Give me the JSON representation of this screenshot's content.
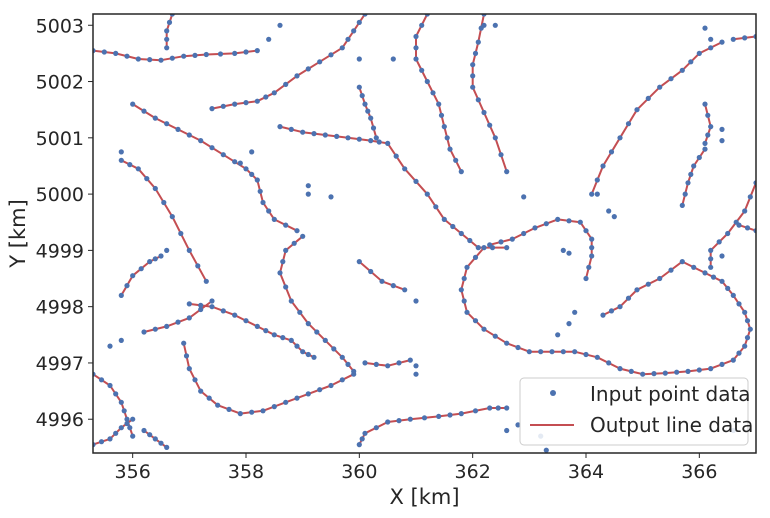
{
  "chart_data": {
    "type": "line",
    "title": "",
    "xlabel": "X [km]",
    "ylabel": "Y [km]",
    "xlim": [
      355.3,
      367.0
    ],
    "ylim": [
      4995.4,
      5003.2
    ],
    "xticks": [
      356,
      358,
      360,
      362,
      364,
      366
    ],
    "yticks": [
      4996,
      4997,
      4998,
      4999,
      5000,
      5001,
      5002,
      5003
    ],
    "grid": false,
    "legend": {
      "placement": "bottom-right",
      "entries": [
        "Input point data",
        "Output line data"
      ]
    },
    "colors": {
      "points": "#4c72b0",
      "lines": "#c44e52",
      "axes": "#262626"
    },
    "series": [
      {
        "name": "Output line data",
        "kind": "lines",
        "lines": [
          [
            [
              355.3,
              5002.55
            ],
            [
              355.7,
              5002.5
            ],
            [
              356.1,
              5002.4
            ],
            [
              356.5,
              5002.38
            ],
            [
              356.9,
              5002.45
            ],
            [
              357.3,
              5002.48
            ],
            [
              357.8,
              5002.5
            ],
            [
              358.2,
              5002.55
            ]
          ],
          [
            [
              356.7,
              5003.2
            ],
            [
              356.6,
              5002.9
            ],
            [
              356.6,
              5002.6
            ]
          ],
          [
            [
              357.4,
              5001.52
            ],
            [
              357.8,
              5001.6
            ],
            [
              358.2,
              5001.65
            ],
            [
              358.5,
              5001.8
            ],
            [
              358.9,
              5002.1
            ],
            [
              359.3,
              5002.35
            ],
            [
              359.7,
              5002.6
            ],
            [
              359.9,
              5002.9
            ],
            [
              360.1,
              5003.2
            ]
          ],
          [
            [
              356.0,
              5001.6
            ],
            [
              356.4,
              5001.35
            ],
            [
              356.8,
              5001.15
            ],
            [
              357.2,
              5000.95
            ],
            [
              357.6,
              5000.7
            ],
            [
              358.0,
              5000.45
            ],
            [
              358.2,
              5000.25
            ],
            [
              358.3,
              4999.85
            ],
            [
              358.5,
              4999.55
            ],
            [
              358.9,
              4999.35
            ]
          ],
          [
            [
              355.8,
              5000.6
            ],
            [
              356.1,
              5000.45
            ],
            [
              356.4,
              5000.1
            ],
            [
              356.7,
              4999.6
            ],
            [
              357.0,
              4999.0
            ],
            [
              357.3,
              4998.45
            ]
          ],
          [
            [
              355.8,
              4998.2
            ],
            [
              356.0,
              4998.55
            ],
            [
              356.3,
              4998.8
            ],
            [
              356.5,
              4998.9
            ]
          ],
          [
            [
              358.6,
              5001.2
            ],
            [
              359.0,
              5001.1
            ],
            [
              359.4,
              5001.05
            ],
            [
              359.8,
              5001.0
            ],
            [
              360.2,
              5000.95
            ],
            [
              360.5,
              5000.9
            ],
            [
              360.8,
              5000.45
            ],
            [
              361.2,
              5000.0
            ],
            [
              361.5,
              4999.55
            ],
            [
              361.8,
              4999.3
            ],
            [
              362.1,
              4999.05
            ],
            [
              362.6,
              4999.05
            ]
          ],
          [
            [
              360.0,
              5001.9
            ],
            [
              360.1,
              5001.6
            ],
            [
              360.2,
              5001.35
            ],
            [
              360.3,
              5001.0
            ]
          ],
          [
            [
              361.2,
              5003.2
            ],
            [
              361.0,
              5002.8
            ],
            [
              361.0,
              5002.4
            ],
            [
              361.2,
              5002.0
            ],
            [
              361.4,
              5001.6
            ],
            [
              361.5,
              5001.2
            ],
            [
              361.6,
              5000.8
            ],
            [
              361.8,
              5000.4
            ]
          ],
          [
            [
              362.2,
              5003.2
            ],
            [
              362.1,
              5002.7
            ],
            [
              362.0,
              5002.3
            ],
            [
              362.0,
              5001.9
            ],
            [
              362.2,
              5001.45
            ],
            [
              362.4,
              5001.0
            ],
            [
              362.6,
              5000.4
            ]
          ],
          [
            [
              359.0,
              4999.25
            ],
            [
              358.7,
              4999.0
            ],
            [
              358.6,
              4998.6
            ],
            [
              358.8,
              4998.1
            ],
            [
              359.1,
              4997.7
            ],
            [
              359.4,
              4997.4
            ],
            [
              359.7,
              4997.1
            ],
            [
              359.9,
              4996.85
            ]
          ],
          [
            [
              360.0,
              4998.8
            ],
            [
              360.4,
              4998.45
            ],
            [
              360.8,
              4998.3
            ]
          ],
          [
            [
              357.0,
              4998.05
            ],
            [
              357.4,
              4998.0
            ],
            [
              357.8,
              4997.85
            ],
            [
              358.2,
              4997.65
            ],
            [
              358.5,
              4997.5
            ],
            [
              358.8,
              4997.4
            ],
            [
              359.0,
              4997.2
            ],
            [
              359.2,
              4997.1
            ]
          ],
          [
            [
              356.2,
              4997.55
            ],
            [
              356.6,
              4997.65
            ],
            [
              357.0,
              4997.8
            ],
            [
              357.4,
              4998.1
            ]
          ],
          [
            [
              356.9,
              4997.35
            ],
            [
              357.0,
              4996.9
            ],
            [
              357.2,
              4996.5
            ],
            [
              357.5,
              4996.25
            ],
            [
              357.9,
              4996.1
            ],
            [
              358.3,
              4996.15
            ],
            [
              358.7,
              4996.3
            ],
            [
              359.1,
              4996.45
            ],
            [
              359.5,
              4996.6
            ],
            [
              359.9,
              4996.8
            ]
          ],
          [
            [
              355.3,
              4996.8
            ],
            [
              355.6,
              4996.6
            ],
            [
              355.8,
              4996.3
            ],
            [
              355.9,
              4996.0
            ],
            [
              356.0,
              4995.7
            ]
          ],
          [
            [
              355.3,
              4995.55
            ],
            [
              355.6,
              4995.65
            ],
            [
              355.8,
              4995.85
            ],
            [
              356.0,
              4996.0
            ]
          ],
          [
            [
              356.2,
              4995.8
            ],
            [
              356.4,
              4995.65
            ],
            [
              356.6,
              4995.5
            ]
          ],
          [
            [
              360.1,
              4997.0
            ],
            [
              360.5,
              4996.95
            ],
            [
              360.9,
              4997.05
            ]
          ],
          [
            [
              360.0,
              4995.55
            ],
            [
              360.1,
              4995.75
            ],
            [
              360.5,
              4995.95
            ],
            [
              360.9,
              4996.0
            ],
            [
              361.4,
              4996.05
            ],
            [
              361.8,
              4996.1
            ],
            [
              362.3,
              4996.2
            ],
            [
              362.6,
              4996.2
            ]
          ],
          [
            [
              362.2,
              4999.05
            ],
            [
              361.9,
              4998.7
            ],
            [
              361.8,
              4998.3
            ],
            [
              361.9,
              4997.9
            ],
            [
              362.2,
              4997.6
            ],
            [
              362.6,
              4997.35
            ],
            [
              363.0,
              4997.2
            ],
            [
              363.4,
              4997.2
            ],
            [
              363.8,
              4997.2
            ],
            [
              364.2,
              4997.1
            ],
            [
              364.6,
              4996.9
            ],
            [
              365.0,
              4996.8
            ],
            [
              365.4,
              4996.82
            ],
            [
              365.8,
              4996.85
            ],
            [
              366.2,
              4996.9
            ],
            [
              366.6,
              4997.05
            ],
            [
              366.8,
              4997.3
            ],
            [
              366.9,
              4997.6
            ],
            [
              366.8,
              4997.9
            ],
            [
              366.6,
              4998.2
            ],
            [
              366.4,
              4998.45
            ],
            [
              366.1,
              4998.6
            ],
            [
              365.7,
              4998.8
            ],
            [
              365.3,
              4998.5
            ],
            [
              364.9,
              4998.3
            ],
            [
              364.6,
              4998.0
            ],
            [
              364.3,
              4997.85
            ]
          ],
          [
            [
              362.3,
              4999.1
            ],
            [
              362.7,
              4999.2
            ],
            [
              363.1,
              4999.4
            ],
            [
              363.5,
              4999.55
            ],
            [
              363.9,
              4999.5
            ],
            [
              364.1,
              4999.2
            ],
            [
              364.1,
              4998.9
            ],
            [
              364.0,
              4998.5
            ]
          ],
          [
            [
              364.1,
              5000.0
            ],
            [
              364.3,
              5000.5
            ],
            [
              364.6,
              5001.0
            ],
            [
              364.9,
              5001.5
            ],
            [
              365.3,
              5001.9
            ],
            [
              365.7,
              5002.2
            ],
            [
              366.0,
              5002.5
            ],
            [
              366.4,
              5002.7
            ]
          ],
          [
            [
              366.1,
              5000.8
            ],
            [
              365.9,
              5000.5
            ],
            [
              365.8,
              5000.2
            ],
            [
              365.7,
              4999.8
            ]
          ],
          [
            [
              366.1,
              5001.6
            ],
            [
              366.2,
              5001.2
            ],
            [
              366.1,
              5000.9
            ]
          ],
          [
            [
              366.2,
              4998.7
            ],
            [
              366.2,
              4999.0
            ],
            [
              366.5,
              4999.3
            ],
            [
              366.8,
              4999.7
            ],
            [
              367.0,
              5000.2
            ]
          ],
          [
            [
              366.6,
              5002.75
            ],
            [
              367.0,
              5002.8
            ]
          ],
          [
            [
              366.7,
              4999.45
            ],
            [
              367.0,
              4999.35
            ]
          ]
        ]
      },
      {
        "name": "Input point data",
        "kind": "scatter",
        "extra_points": [
          [
            355.6,
            4997.3
          ],
          [
            355.8,
            4997.4
          ],
          [
            355.8,
            5000.75
          ],
          [
            356.6,
            4999.0
          ],
          [
            357.9,
            5000.55
          ],
          [
            358.1,
            5000.75
          ],
          [
            358.4,
            5002.75
          ],
          [
            358.6,
            5003.0
          ],
          [
            359.1,
            5000.15
          ],
          [
            359.1,
            5000.0
          ],
          [
            359.5,
            4999.95
          ],
          [
            360.0,
            5002.4
          ],
          [
            360.6,
            5002.4
          ],
          [
            361.0,
            4998.1
          ],
          [
            361.0,
            4996.8
          ],
          [
            361.0,
            4996.95
          ],
          [
            362.2,
            5003.0
          ],
          [
            362.4,
            5003.0
          ],
          [
            362.9,
            4999.95
          ],
          [
            363.6,
            4999.0
          ],
          [
            363.7,
            4998.95
          ],
          [
            363.5,
            4997.5
          ],
          [
            363.7,
            4997.7
          ],
          [
            363.8,
            4997.9
          ],
          [
            364.4,
            4999.7
          ],
          [
            364.5,
            4999.6
          ],
          [
            364.2,
            5000.0
          ],
          [
            366.1,
            5002.95
          ],
          [
            366.2,
            5002.75
          ],
          [
            366.4,
            5001.15
          ],
          [
            366.4,
            5000.95
          ],
          [
            366.4,
            4998.9
          ],
          [
            362.6,
            4995.8
          ],
          [
            362.8,
            4995.9
          ],
          [
            363.2,
            4995.7
          ],
          [
            363.3,
            4995.45
          ],
          [
            366.6,
            4995.8
          ]
        ]
      }
    ]
  }
}
